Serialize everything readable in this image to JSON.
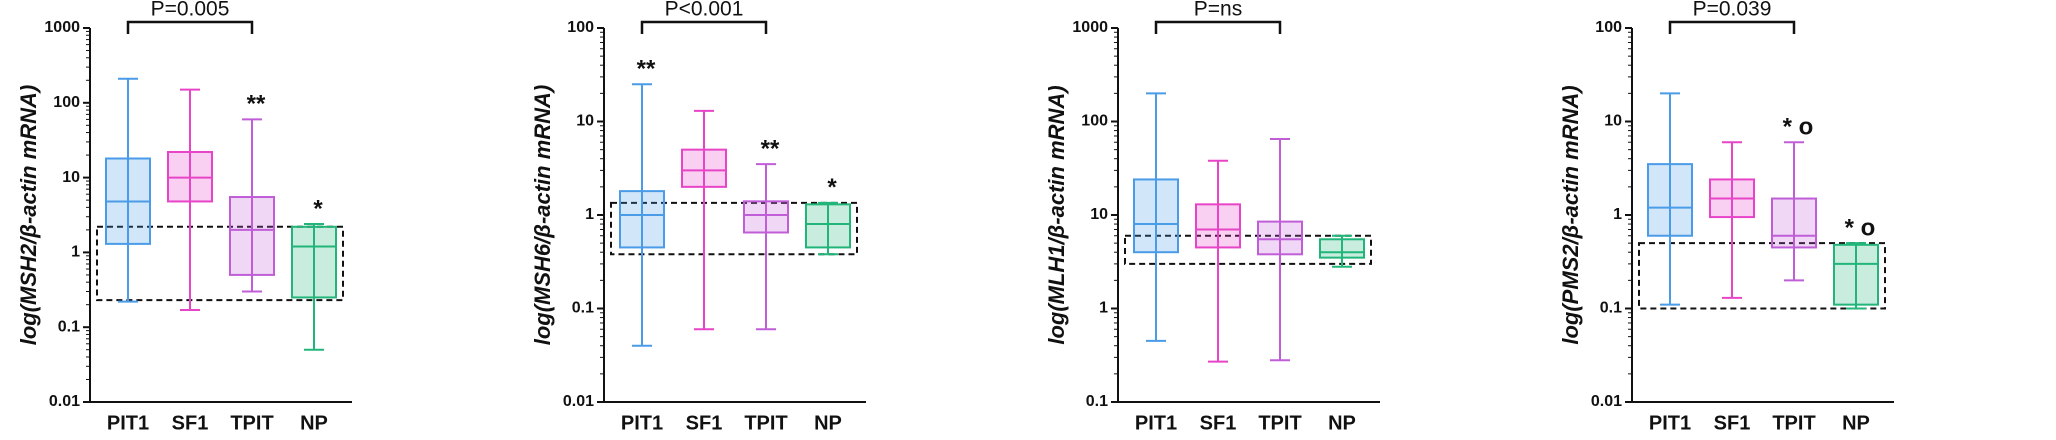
{
  "chart_data": [
    {
      "type": "box",
      "log_scale": true,
      "ylabel": "log(MSH2/β-actin mRNA)",
      "annotation": "P=0.005",
      "categories": [
        "PIT1",
        "SF1",
        "TPIT",
        "NP"
      ],
      "colors": [
        "#4a9be8",
        "#e844c8",
        "#c05ed8",
        "#22b57a"
      ],
      "boxes": [
        {
          "min": 0.22,
          "q1": 1.3,
          "median": 4.8,
          "q3": 18,
          "max": 210
        },
        {
          "min": 0.17,
          "q1": 4.8,
          "median": 10,
          "q3": 22,
          "max": 150
        },
        {
          "min": 0.3,
          "q1": 0.5,
          "median": 2,
          "q3": 5.5,
          "max": 60
        },
        {
          "min": 0.05,
          "q1": 0.25,
          "median": 1.2,
          "q3": 2.2,
          "max": 2.4
        }
      ],
      "stars": [
        null,
        null,
        "**",
        "*"
      ],
      "reference_range": [
        0.23,
        2.2
      ],
      "ylim": [
        0.01,
        1000
      ],
      "yticks": [
        0.01,
        0.1,
        1,
        10,
        100,
        1000
      ]
    },
    {
      "type": "box",
      "log_scale": true,
      "ylabel": "log(MSH6/β-actin mRNA)",
      "annotation": "P<0.001",
      "categories": [
        "PIT1",
        "SF1",
        "TPIT",
        "NP"
      ],
      "colors": [
        "#4a9be8",
        "#e844c8",
        "#c05ed8",
        "#22b57a"
      ],
      "boxes": [
        {
          "min": 0.04,
          "q1": 0.45,
          "median": 1.0,
          "q3": 1.8,
          "max": 25
        },
        {
          "min": 0.06,
          "q1": 2.0,
          "median": 3.0,
          "q3": 5.0,
          "max": 13
        },
        {
          "min": 0.06,
          "q1": 0.65,
          "median": 1.0,
          "q3": 1.4,
          "max": 3.5
        },
        {
          "min": 0.38,
          "q1": 0.45,
          "median": 0.8,
          "q3": 1.3,
          "max": 1.35
        }
      ],
      "stars": [
        "**",
        null,
        "**",
        "*"
      ],
      "reference_range": [
        0.38,
        1.35
      ],
      "ylim": [
        0.01,
        100
      ],
      "yticks": [
        0.01,
        0.1,
        1,
        10,
        100
      ]
    },
    {
      "type": "box",
      "log_scale": true,
      "ylabel": "log(MLH1/β-actin mRNA)",
      "annotation": "P=ns",
      "categories": [
        "PIT1",
        "SF1",
        "TPIT",
        "NP"
      ],
      "colors": [
        "#4a9be8",
        "#e844c8",
        "#c05ed8",
        "#22b57a"
      ],
      "boxes": [
        {
          "min": 0.45,
          "q1": 4,
          "median": 8,
          "q3": 24,
          "max": 200
        },
        {
          "min": 0.27,
          "q1": 4.5,
          "median": 7,
          "q3": 13,
          "max": 38
        },
        {
          "min": 0.28,
          "q1": 3.8,
          "median": 5.5,
          "q3": 8.5,
          "max": 65
        },
        {
          "min": 2.8,
          "q1": 3.5,
          "median": 4,
          "q3": 5.5,
          "max": 6
        }
      ],
      "stars": [
        null,
        null,
        null,
        null
      ],
      "reference_range": [
        3,
        6
      ],
      "ylim": [
        0.1,
        1000
      ],
      "yticks": [
        0.1,
        1,
        10,
        100,
        1000
      ]
    },
    {
      "type": "box",
      "log_scale": true,
      "ylabel": "log(PMS2/β-actin mRNA)",
      "annotation": "P=0.039",
      "categories": [
        "PIT1",
        "SF1",
        "TPIT",
        "NP"
      ],
      "colors": [
        "#4a9be8",
        "#e844c8",
        "#c05ed8",
        "#22b57a"
      ],
      "boxes": [
        {
          "min": 0.11,
          "q1": 0.6,
          "median": 1.2,
          "q3": 3.5,
          "max": 20
        },
        {
          "min": 0.13,
          "q1": 0.95,
          "median": 1.5,
          "q3": 2.4,
          "max": 6
        },
        {
          "min": 0.2,
          "q1": 0.45,
          "median": 0.6,
          "q3": 1.5,
          "max": 6
        },
        {
          "min": 0.1,
          "q1": 0.11,
          "median": 0.3,
          "q3": 0.48,
          "max": 0.5
        }
      ],
      "stars": [
        null,
        null,
        "* o",
        "* o"
      ],
      "reference_range": [
        0.1,
        0.5
      ],
      "ylim": [
        0.01,
        100
      ],
      "yticks": [
        0.01,
        0.1,
        1,
        10,
        100
      ]
    }
  ]
}
